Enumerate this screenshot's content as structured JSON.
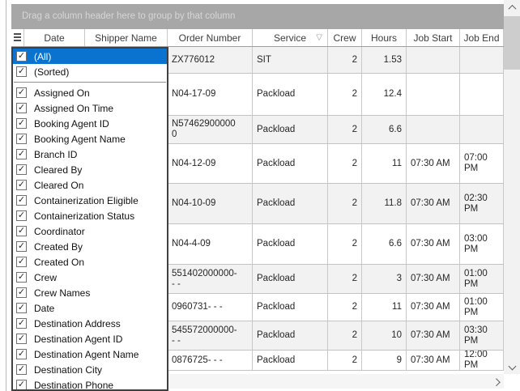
{
  "group_panel": {
    "text": "Drag a column header here to group by that column"
  },
  "grid": {
    "columns": [
      {
        "id": "indicator",
        "label": ""
      },
      {
        "id": "date",
        "label": "Date"
      },
      {
        "id": "shipper-name",
        "label": "Shipper Name"
      },
      {
        "id": "order-number",
        "label": "Order Number"
      },
      {
        "id": "service",
        "label": "Service",
        "filtered": true
      },
      {
        "id": "crew",
        "label": "Crew"
      },
      {
        "id": "hours",
        "label": "Hours"
      },
      {
        "id": "job-start",
        "label": "Job Start"
      },
      {
        "id": "job-end",
        "label": "Job End"
      }
    ],
    "rows": [
      {
        "order_number": "ZX776012",
        "service": "SIT",
        "crew": "2",
        "hours": "1.53",
        "job_start": "",
        "job_end": ""
      },
      {
        "order_number": "N04-17-09",
        "service": "Packload",
        "crew": "2",
        "hours": "12.4",
        "job_start": "",
        "job_end": ""
      },
      {
        "order_number": "N57462900000\n0",
        "service": "Packload",
        "crew": "2",
        "hours": "6.6",
        "job_start": "",
        "job_end": ""
      },
      {
        "order_number": "N04-12-09",
        "service": "Packload",
        "crew": "2",
        "hours": "11",
        "job_start": "07:30 AM",
        "job_end": "07:00 PM"
      },
      {
        "order_number": "N04-10-09",
        "service": "Packload",
        "crew": "2",
        "hours": "11.8",
        "job_start": "07:30 AM",
        "job_end": "02:30 PM"
      },
      {
        "order_number": "N04-4-09",
        "service": "Packload",
        "crew": "2",
        "hours": "6.6",
        "job_start": "07:30 AM",
        "job_end": "03:00 PM"
      },
      {
        "order_number": "551402000000-\n- -",
        "service": "Packload",
        "crew": "2",
        "hours": "3",
        "job_start": "07:30 AM",
        "job_end": "01:00 PM"
      },
      {
        "order_number": "0960731- - -",
        "service": "Packload",
        "crew": "2",
        "hours": "11",
        "job_start": "07:30 AM",
        "job_end": "01:00 PM"
      },
      {
        "order_number": "545572000000-\n- -",
        "service": "Packload",
        "crew": "2",
        "hours": "10",
        "job_start": "07:30 AM",
        "job_end": "03:30 PM"
      },
      {
        "order_number": "0876725- - -",
        "service": "Packload",
        "crew": "2",
        "hours": "9",
        "job_start": "07:30 AM",
        "job_end": "12:00 PM"
      }
    ]
  },
  "filter_dropdown": {
    "items": [
      {
        "label": "(All)",
        "checked": true,
        "selected": true
      },
      {
        "label": "(Sorted)",
        "checked": true
      },
      {
        "separator": true
      },
      {
        "label": "Assigned On",
        "checked": true
      },
      {
        "label": "Assigned On Time",
        "checked": true
      },
      {
        "label": "Booking Agent ID",
        "checked": true
      },
      {
        "label": "Booking Agent Name",
        "checked": true
      },
      {
        "label": "Branch ID",
        "checked": true
      },
      {
        "label": "Cleared By",
        "checked": true
      },
      {
        "label": "Cleared On",
        "checked": true
      },
      {
        "label": "Containerization Eligible",
        "checked": true
      },
      {
        "label": "Containerization Status",
        "checked": true
      },
      {
        "label": "Coordinator",
        "checked": true
      },
      {
        "label": "Created By",
        "checked": true
      },
      {
        "label": "Created On",
        "checked": true
      },
      {
        "label": "Crew",
        "checked": true
      },
      {
        "label": "Crew Names",
        "checked": true
      },
      {
        "label": "Date",
        "checked": true
      },
      {
        "label": "Destination Address",
        "checked": true
      },
      {
        "label": "Destination Agent ID",
        "checked": true
      },
      {
        "label": "Destination Agent Name",
        "checked": true
      },
      {
        "label": "Destination City",
        "checked": true
      },
      {
        "label": "Destination Phone",
        "checked": true
      }
    ]
  },
  "icons": {
    "check": "✓",
    "filter": "▽"
  },
  "colors": {
    "selection": "#0a72cf",
    "panel_bg": "#a7a7a7",
    "alt_row": "#f2f2f2"
  }
}
